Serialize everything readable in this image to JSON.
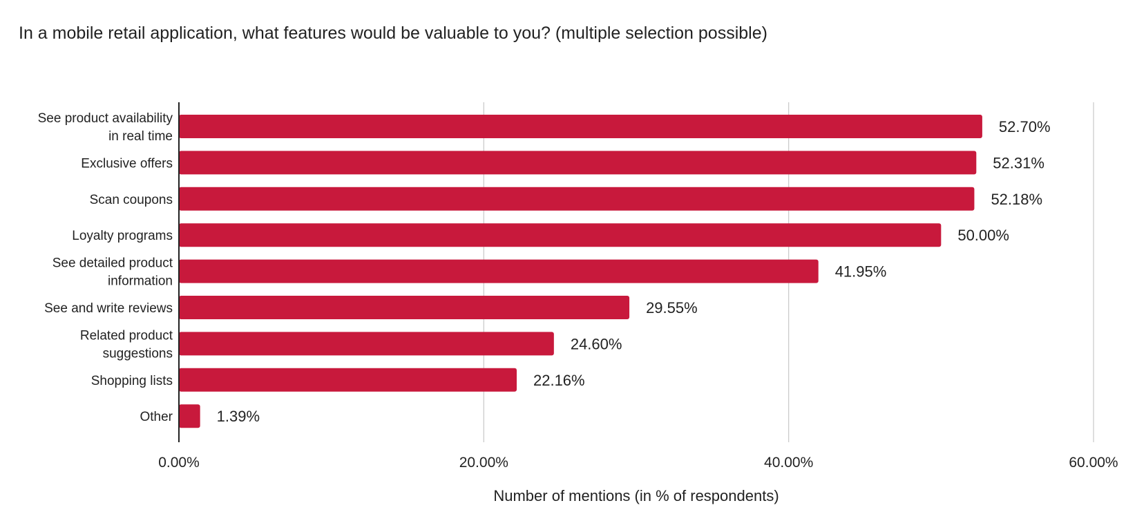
{
  "chart_data": {
    "type": "bar",
    "orientation": "horizontal",
    "title": "In a mobile retail application, what features would be valuable to you? (multiple selection possible)",
    "xlabel": "Number of mentions (in % of respondents)",
    "ylabel": "",
    "xlim": [
      0,
      60
    ],
    "ticks": [
      0,
      20,
      40,
      60
    ],
    "tick_labels": [
      "0.00%",
      "20.00%",
      "40.00%",
      "60.00%"
    ],
    "grid": true,
    "bar_color": "#c8193c",
    "categories": [
      [
        "See product availability",
        "in real time"
      ],
      [
        "Exclusive offers"
      ],
      [
        "Scan coupons"
      ],
      [
        "Loyalty programs"
      ],
      [
        "See detailed product",
        "information"
      ],
      [
        "See and write reviews"
      ],
      [
        "Related product",
        "suggestions"
      ],
      [
        "Shopping lists"
      ],
      [
        "Other"
      ]
    ],
    "values": [
      52.7,
      52.31,
      52.18,
      50.0,
      41.95,
      29.55,
      24.6,
      22.16,
      1.39
    ],
    "value_labels": [
      "52.70%",
      "52.31%",
      "52.18%",
      "50.00%",
      "41.95%",
      "29.55%",
      "24.60%",
      "22.16%",
      "1.39%"
    ]
  }
}
